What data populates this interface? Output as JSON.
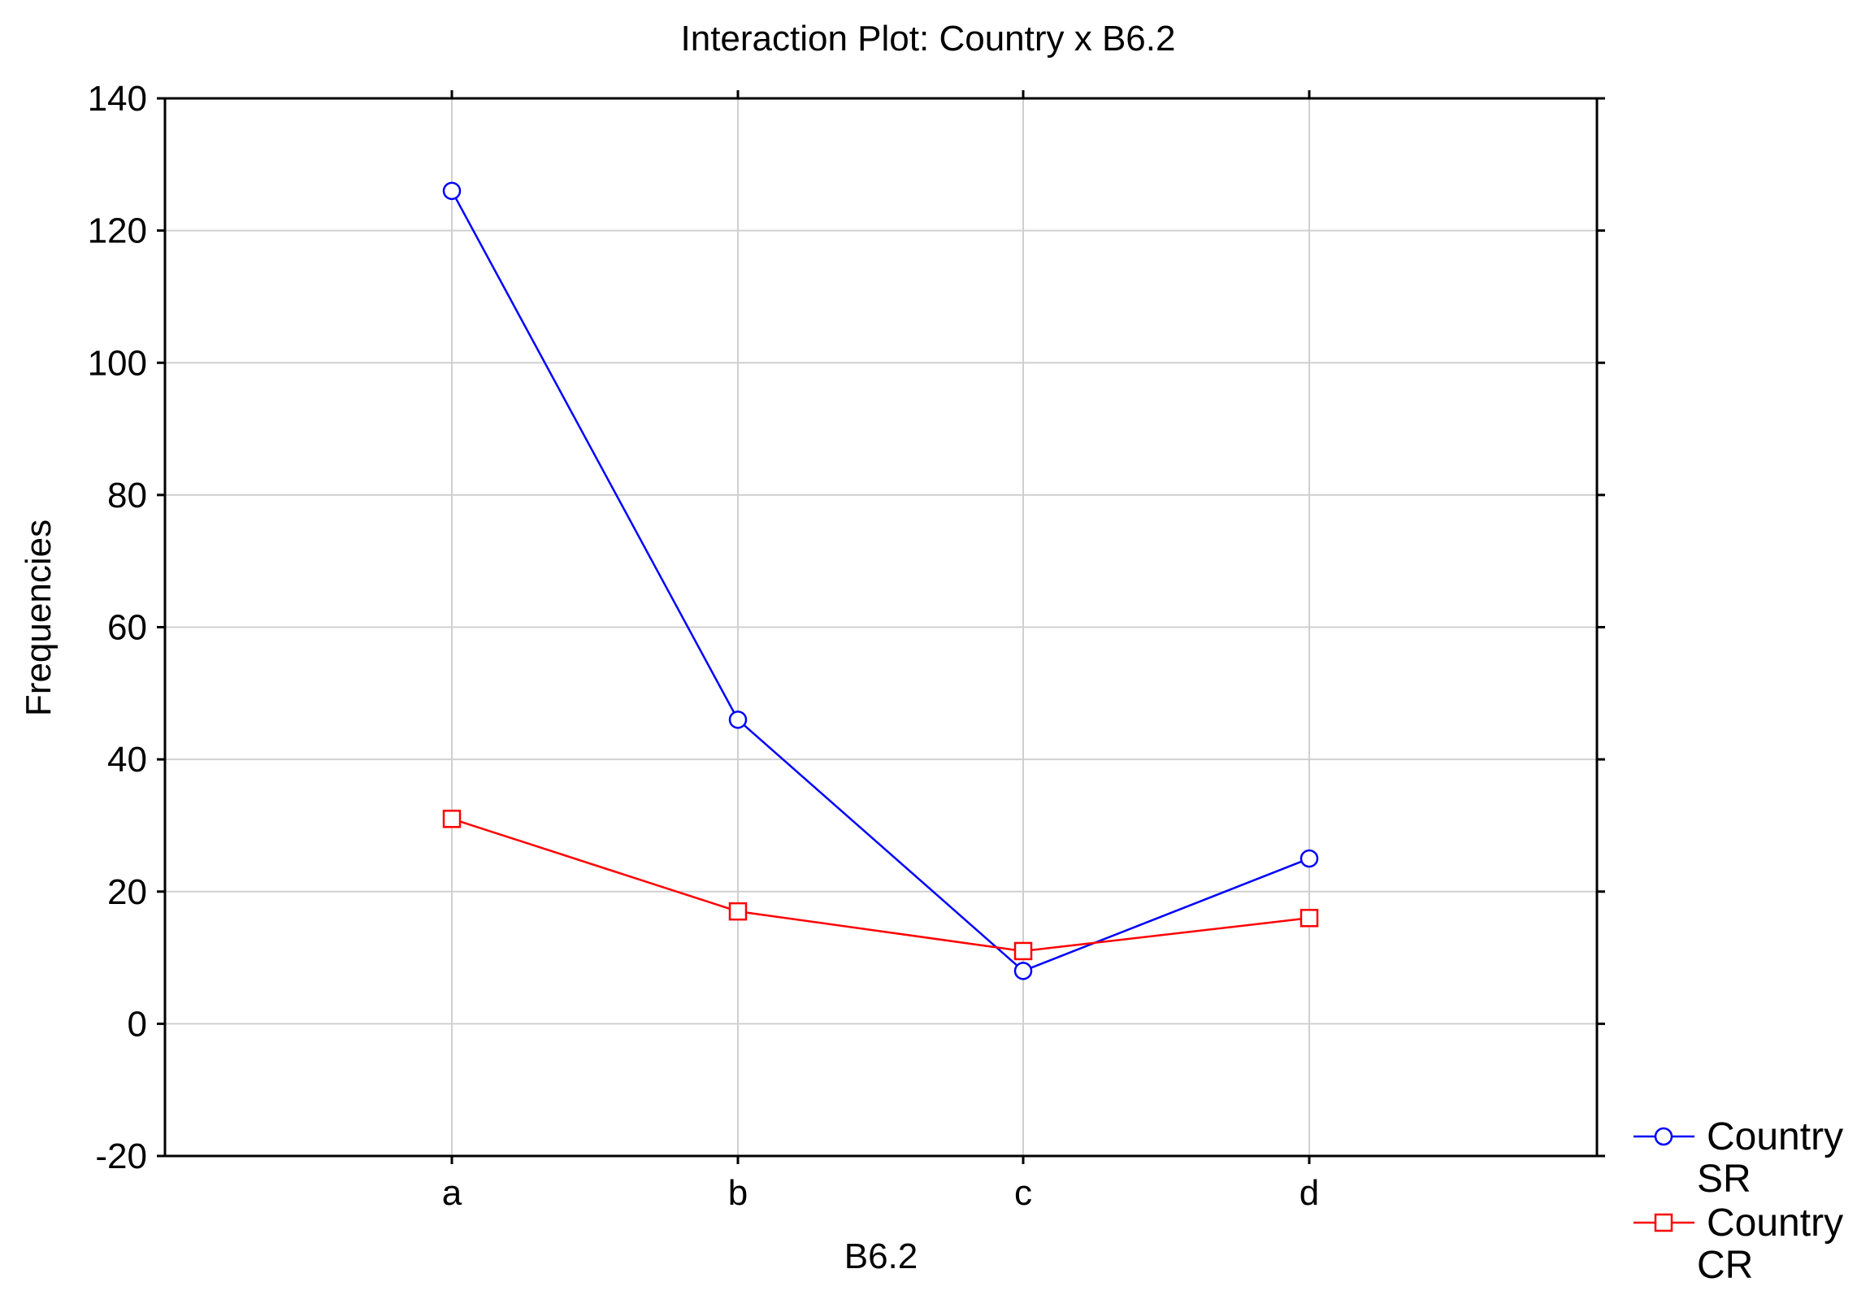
{
  "chart_data": {
    "type": "line",
    "title": "Interaction Plot: Country x B6.2",
    "xlabel": "B6.2",
    "ylabel": "Frequencies",
    "categories": [
      "a",
      "b",
      "c",
      "d"
    ],
    "ylim": [
      -20,
      140
    ],
    "yticks": [
      -20,
      0,
      20,
      40,
      60,
      80,
      100,
      120,
      140
    ],
    "grid": true,
    "legend_position": "bottom-right, outside",
    "series": [
      {
        "legend_line1": "Country",
        "legend_line2": "SR",
        "marker": "circle",
        "color": "#0000ff",
        "values": [
          126,
          46,
          8,
          25
        ]
      },
      {
        "legend_line1": "Country",
        "legend_line2": "CR",
        "marker": "square",
        "color": "#ff0000",
        "values": [
          31,
          17,
          11,
          16
        ]
      }
    ]
  }
}
